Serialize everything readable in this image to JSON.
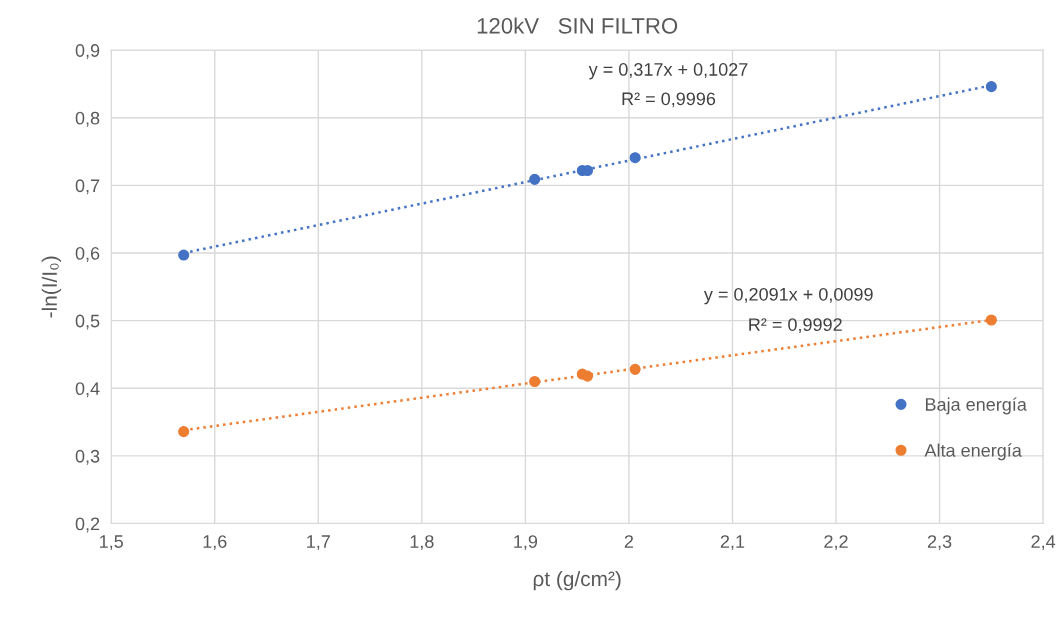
{
  "chart_data": {
    "type": "scatter",
    "title": "120kV   SIN FILTRO",
    "xlabel": "ρt (g/cm²)",
    "ylabel": "-ln(I/I₀)",
    "series": [
      {
        "name": "Baja energía",
        "color": "#4472c4",
        "x": [
          1.57,
          1.909,
          1.955,
          1.96,
          2.006,
          2.35
        ],
        "values": [
          0.597,
          0.709,
          0.722,
          0.722,
          0.741,
          0.846
        ]
      },
      {
        "name": "Alta energía",
        "color": "#ed7d31",
        "x": [
          1.57,
          1.909,
          1.955,
          1.96,
          2.006,
          2.35
        ],
        "values": [
          0.336,
          0.41,
          0.421,
          0.418,
          0.428,
          0.501
        ]
      },
      {
        "type": "line",
        "line_style": "dotted",
        "marker": "none",
        "color": "#4472c4",
        "x": [
          1.57,
          2.35
        ],
        "values": [
          0.6,
          0.848
        ]
      },
      {
        "type": "line",
        "line_style": "dotted",
        "marker": "none",
        "color": "#ed7d31",
        "x": [
          1.57,
          2.35
        ],
        "values": [
          0.338,
          0.501
        ]
      }
    ],
    "marker": "circle",
    "xlim": [
      1.5,
      2.4
    ],
    "xticks": [
      {
        "value": 1.5,
        "label": "1,5"
      },
      {
        "value": 1.6,
        "label": "1,6"
      },
      {
        "value": 1.7,
        "label": "1,7"
      },
      {
        "value": 1.8,
        "label": "1,8"
      },
      {
        "value": 1.9,
        "label": "1,9"
      },
      2,
      {
        "value": 2.1,
        "label": "2,1"
      },
      {
        "value": 2.2,
        "label": "2,2"
      },
      {
        "value": 2.3,
        "label": "2,3"
      },
      {
        "value": 2.4,
        "label": "2,4"
      }
    ],
    "ylim": [
      0.2,
      0.9
    ],
    "yticks": [
      {
        "value": 0.2,
        "label": "0,2"
      },
      {
        "value": 0.3,
        "label": "0,3"
      },
      {
        "value": 0.4,
        "label": "0,4"
      },
      {
        "value": 0.5,
        "label": "0,5"
      },
      {
        "value": 0.6,
        "label": "0,6"
      },
      {
        "value": 0.7,
        "label": "0,7"
      },
      {
        "value": 0.8,
        "label": "0,8"
      },
      {
        "value": 0.9,
        "label": "0,9"
      }
    ],
    "grid": true,
    "legend": "right",
    "annotations": [
      "y = 0,317x + 0,1027",
      "R² = 0,9996",
      "y = 0,2091x + 0,0099",
      "R² = 0,9992"
    ]
  }
}
